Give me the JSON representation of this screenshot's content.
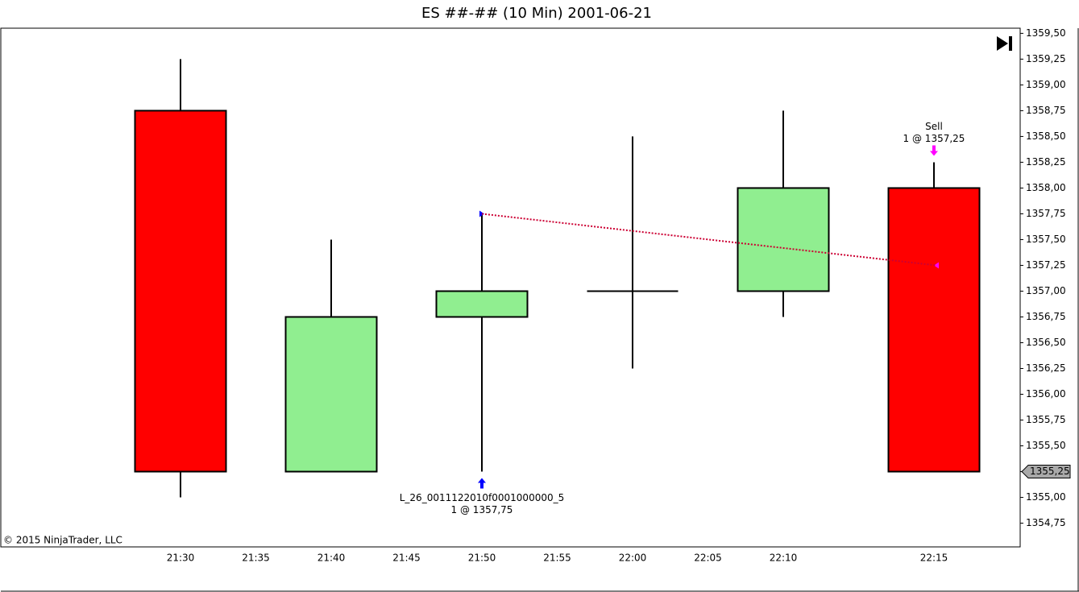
{
  "chart_data": {
    "type": "candlestick",
    "title": "ES ##-## (10 Min)  2001-06-21",
    "footer": "© 2015 NinjaTrader, LLC",
    "categories": [
      "21:30",
      "21:35",
      "21:40",
      "21:45",
      "21:50",
      "21:55",
      "22:00",
      "22:05",
      "22:10",
      null,
      "22:15"
    ],
    "open": [
      1358.75,
      null,
      1355.25,
      null,
      1356.75,
      null,
      1357.0,
      null,
      1357.0,
      null,
      1358.0
    ],
    "high": [
      1359.25,
      null,
      1357.5,
      null,
      1357.75,
      null,
      1358.5,
      null,
      1358.75,
      null,
      1358.25
    ],
    "low": [
      1355.0,
      null,
      1355.25,
      null,
      1355.25,
      null,
      1356.25,
      null,
      1356.75,
      null,
      1355.25
    ],
    "close": [
      1355.25,
      null,
      1356.75,
      null,
      1357.0,
      null,
      1357.0,
      null,
      1358.0,
      null,
      1355.25
    ],
    "up_color": "#90ee90",
    "down_color": "#ff0000",
    "ylim": [
      1354.52,
      1359.55
    ],
    "yticks": [
      {
        "value": 1354.75,
        "label": "1354,75"
      },
      {
        "value": 1355.0,
        "label": "1355,00"
      },
      {
        "value": 1355.25,
        "label": "1355,25"
      },
      {
        "value": 1355.5,
        "label": "1355,50"
      },
      {
        "value": 1355.75,
        "label": "1355,75"
      },
      {
        "value": 1356.0,
        "label": "1356,00"
      },
      {
        "value": 1356.25,
        "label": "1356,25"
      },
      {
        "value": 1356.5,
        "label": "1356,50"
      },
      {
        "value": 1356.75,
        "label": "1356,75"
      },
      {
        "value": 1357.0,
        "label": "1357,00"
      },
      {
        "value": 1357.25,
        "label": "1357,25"
      },
      {
        "value": 1357.5,
        "label": "1357,50"
      },
      {
        "value": 1357.75,
        "label": "1357,75"
      },
      {
        "value": 1358.0,
        "label": "1358,00"
      },
      {
        "value": 1358.25,
        "label": "1358,25"
      },
      {
        "value": 1358.5,
        "label": "1358,50"
      },
      {
        "value": 1358.75,
        "label": "1358,75"
      },
      {
        "value": 1359.0,
        "label": "1359,00"
      },
      {
        "value": 1359.25,
        "label": "1359,25"
      },
      {
        "value": 1359.5,
        "label": "1359,50"
      }
    ],
    "last_price": {
      "value": 1355.25,
      "label": "1355,25"
    },
    "trade_line_color": "#cc0033",
    "trades": [
      {
        "bar": "21:50",
        "side": "buy",
        "label": "L_26_0011122010f0001000000_5",
        "detail": "1 @ 1357,75",
        "price": 1357.75,
        "color": "#0000ff"
      },
      {
        "bar": "22:15",
        "side": "sell",
        "label": "Sell",
        "detail": "1 @ 1357,25",
        "price": 1357.25,
        "color": "#ff00ff"
      }
    ]
  }
}
